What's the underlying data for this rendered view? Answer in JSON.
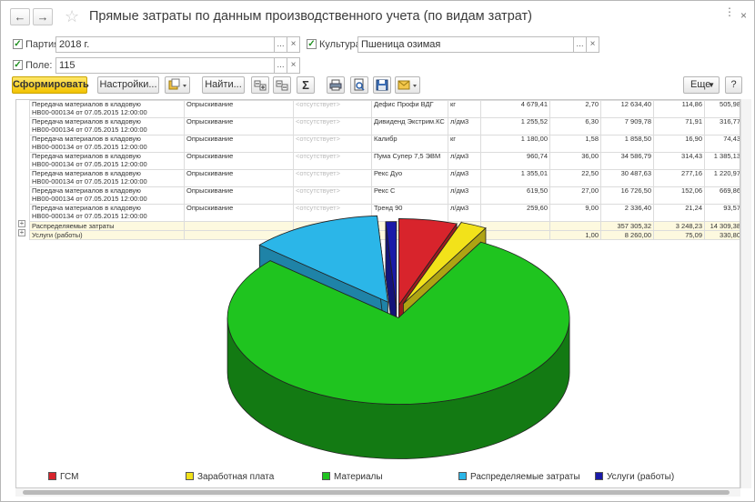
{
  "window": {
    "title": "Прямые затраты по данным производственного учета (по видам затрат)",
    "back_glyph": "←",
    "forward_glyph": "→",
    "star_glyph": "☆",
    "more_glyph": "⋮",
    "close_glyph": "×"
  },
  "filters": {
    "partiya": {
      "label": "Партия:",
      "value": "2018 г."
    },
    "kultura": {
      "label": "Культура:",
      "value": "Пшеница озимая"
    },
    "pole": {
      "label": "Поле:",
      "value": "115"
    },
    "check_glyph": "✓",
    "dots": "...",
    "clear": "×"
  },
  "toolbar": {
    "generate": "Сформировать",
    "settings": "Настройки...",
    "find": "Найти...",
    "sigma": "Σ",
    "more": "Еще",
    "help": "?"
  },
  "table": {
    "rows": [
      [
        "Передача материалов в кладовую",
        "НВ00-000134 от 07.05.2015 12:00:00",
        "Опрыскивание",
        "<отсутствует>",
        "Дефис Профи ВДГ",
        "кг",
        "4 679,41",
        "2,70",
        "12 634,40",
        "114,86",
        "505,98"
      ],
      [
        "Передача материалов в кладовую",
        "НВ00-000134 от 07.05.2015 12:00:00",
        "Опрыскивание",
        "<отсутствует>",
        "Дивиденд Экстрим.КС",
        "л/дм3",
        "1 255,52",
        "6,30",
        "7 909,78",
        "71,91",
        "316,77"
      ],
      [
        "Передача материалов в кладовую",
        "НВ00-000134 от 07.05.2015 12:00:00",
        "Опрыскивание",
        "<отсутствует>",
        "Калибр",
        "кг",
        "1 180,00",
        "1,58",
        "1 858,50",
        "16,90",
        "74,43"
      ],
      [
        "Передача материалов в кладовую",
        "НВ00-000134 от 07.05.2015 12:00:00",
        "Опрыскивание",
        "<отсутствует>",
        "Пума Супер 7,5 ЭВМ",
        "л/дм3",
        "960,74",
        "36,00",
        "34 586,79",
        "314,43",
        "1 385,13"
      ],
      [
        "Передача материалов в кладовую",
        "НВ00-000134 от 07.05.2015 12:00:00",
        "Опрыскивание",
        "<отсутствует>",
        "Рекс Дуо",
        "л/дм3",
        "1 355,01",
        "22,50",
        "30 487,63",
        "277,16",
        "1 220,97"
      ],
      [
        "Передача материалов в кладовую",
        "НВ00-000134 от 07.05.2015 12:00:00",
        "Опрыскивание",
        "<отсутствует>",
        "Рекс С",
        "л/дм3",
        "619,50",
        "27,00",
        "16 726,50",
        "152,06",
        "669,86"
      ],
      [
        "Передача материалов в кладовую",
        "НВ00-000134 от 07.05.2015 12:00:00",
        "Опрыскивание",
        "<отсутствует>",
        "Тренд 90",
        "л/дм3",
        "259,60",
        "9,00",
        "2 336,40",
        "21,24",
        "93,57"
      ]
    ],
    "summary": [
      {
        "label": "Распределяемые затраты",
        "qty": "",
        "sum": "357 305,32",
        "per": "3 248,23",
        "last": "14 309,38"
      },
      {
        "label": "Услуги (работы)",
        "qty": "1,00",
        "sum": "8 260,00",
        "per": "75,09",
        "last": "330,80"
      }
    ]
  },
  "chart_data": {
    "type": "pie",
    "categories": [
      "ГСМ",
      "Заработная плата",
      "Материалы",
      "Распределяемые затраты",
      "Услуги (работы)"
    ],
    "values": [
      5.5,
      2.5,
      78.5,
      12.5,
      1.0
    ],
    "colors": [
      "#d8242c",
      "#f2e21a",
      "#1fc41f",
      "#2bb6e8",
      "#1a1aa8"
    ],
    "exploded": true,
    "three_d": true,
    "legend_position": "bottom"
  }
}
